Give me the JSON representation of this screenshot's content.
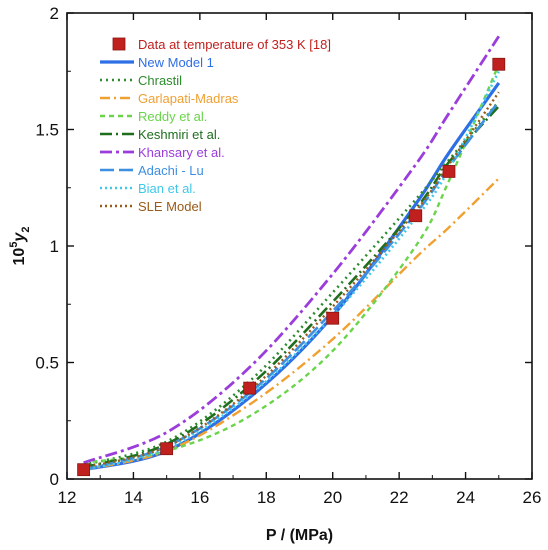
{
  "chart_data": {
    "type": "line",
    "xlabel": "P / (MPa)",
    "ylabel_base": "10",
    "ylabel_sup": "5",
    "ylabel_var": "y",
    "ylabel_sub": "2",
    "xlim": [
      12,
      26
    ],
    "ylim": [
      0,
      2
    ],
    "xticks": [
      "12",
      "14",
      "16",
      "18",
      "20",
      "22",
      "24",
      "26"
    ],
    "yticks": [
      "0",
      "0.5",
      "1",
      "1.5",
      "2"
    ],
    "legend_position": "top-left",
    "points": {
      "name": "Data at temperature of 353 K [18]",
      "color": "#c0201e",
      "x": [
        12.5,
        15,
        17.5,
        20,
        22.5,
        23.5,
        25
      ],
      "y": [
        0.04,
        0.13,
        0.39,
        0.69,
        1.13,
        1.32,
        1.78
      ]
    },
    "series": [
      {
        "name": "New Model 1",
        "color": "#2f6fe6",
        "dash": "",
        "width": 3.2,
        "x": [
          12.5,
          15,
          17.5,
          20,
          22.5,
          23.5,
          25
        ],
        "y": [
          0.04,
          0.12,
          0.35,
          0.7,
          1.18,
          1.4,
          1.7
        ]
      },
      {
        "name": "Chrastil",
        "color": "#2e8b2e",
        "dash": "2,4",
        "width": 2.6,
        "x": [
          12.5,
          15,
          17.5,
          20,
          22.5,
          23.5,
          25
        ],
        "y": [
          0.06,
          0.16,
          0.42,
          0.8,
          1.2,
          1.37,
          1.62
        ]
      },
      {
        "name": "Garlapati-Madras",
        "color": "#f0a030",
        "dash": "10,4,2,4",
        "width": 2.4,
        "x": [
          12.5,
          15,
          17.5,
          20,
          22.5,
          23.5,
          25
        ],
        "y": [
          0.04,
          0.12,
          0.32,
          0.6,
          0.95,
          1.08,
          1.29
        ]
      },
      {
        "name": "Reddy et al.",
        "color": "#6ad44a",
        "dash": "5,4",
        "width": 2.4,
        "x": [
          12.5,
          15,
          17.5,
          20,
          22.5,
          23.5,
          25
        ],
        "y": [
          0.07,
          0.12,
          0.27,
          0.55,
          1.0,
          1.28,
          1.78
        ]
      },
      {
        "name": "Keshmiri et al.",
        "color": "#1e6e1e",
        "dash": "12,4,2,4",
        "width": 2.6,
        "x": [
          12.5,
          15,
          17.5,
          20,
          22.5,
          23.5,
          25
        ],
        "y": [
          0.05,
          0.15,
          0.4,
          0.76,
          1.16,
          1.36,
          1.6
        ]
      },
      {
        "name": "Khansary et al.",
        "color": "#9b3ddb",
        "dash": "12,4,3,4",
        "width": 2.8,
        "x": [
          12.5,
          15,
          17.5,
          20,
          22.5,
          23.5,
          25
        ],
        "y": [
          0.07,
          0.2,
          0.48,
          0.88,
          1.35,
          1.57,
          1.9
        ]
      },
      {
        "name": "Adachi - Lu",
        "color": "#3d8fe0",
        "dash": "14,5",
        "width": 2.6,
        "x": [
          12.5,
          15,
          17.5,
          20,
          22.5,
          23.5,
          25
        ],
        "y": [
          0.04,
          0.14,
          0.37,
          0.72,
          1.14,
          1.34,
          1.62
        ]
      },
      {
        "name": "Bian et al.",
        "color": "#40c8e8",
        "dash": "2,3",
        "width": 2.6,
        "x": [
          12.5,
          15,
          17.5,
          20,
          22.5,
          23.5,
          25
        ],
        "y": [
          0.04,
          0.13,
          0.36,
          0.7,
          1.12,
          1.33,
          1.75
        ]
      },
      {
        "name": "SLE Model",
        "color": "#9a5a18",
        "dash": "2,3",
        "width": 2.4,
        "x": [
          12.5,
          15,
          17.5,
          20,
          22.5,
          23.5,
          25
        ],
        "y": [
          0.05,
          0.14,
          0.38,
          0.74,
          1.15,
          1.35,
          1.66
        ]
      }
    ]
  }
}
